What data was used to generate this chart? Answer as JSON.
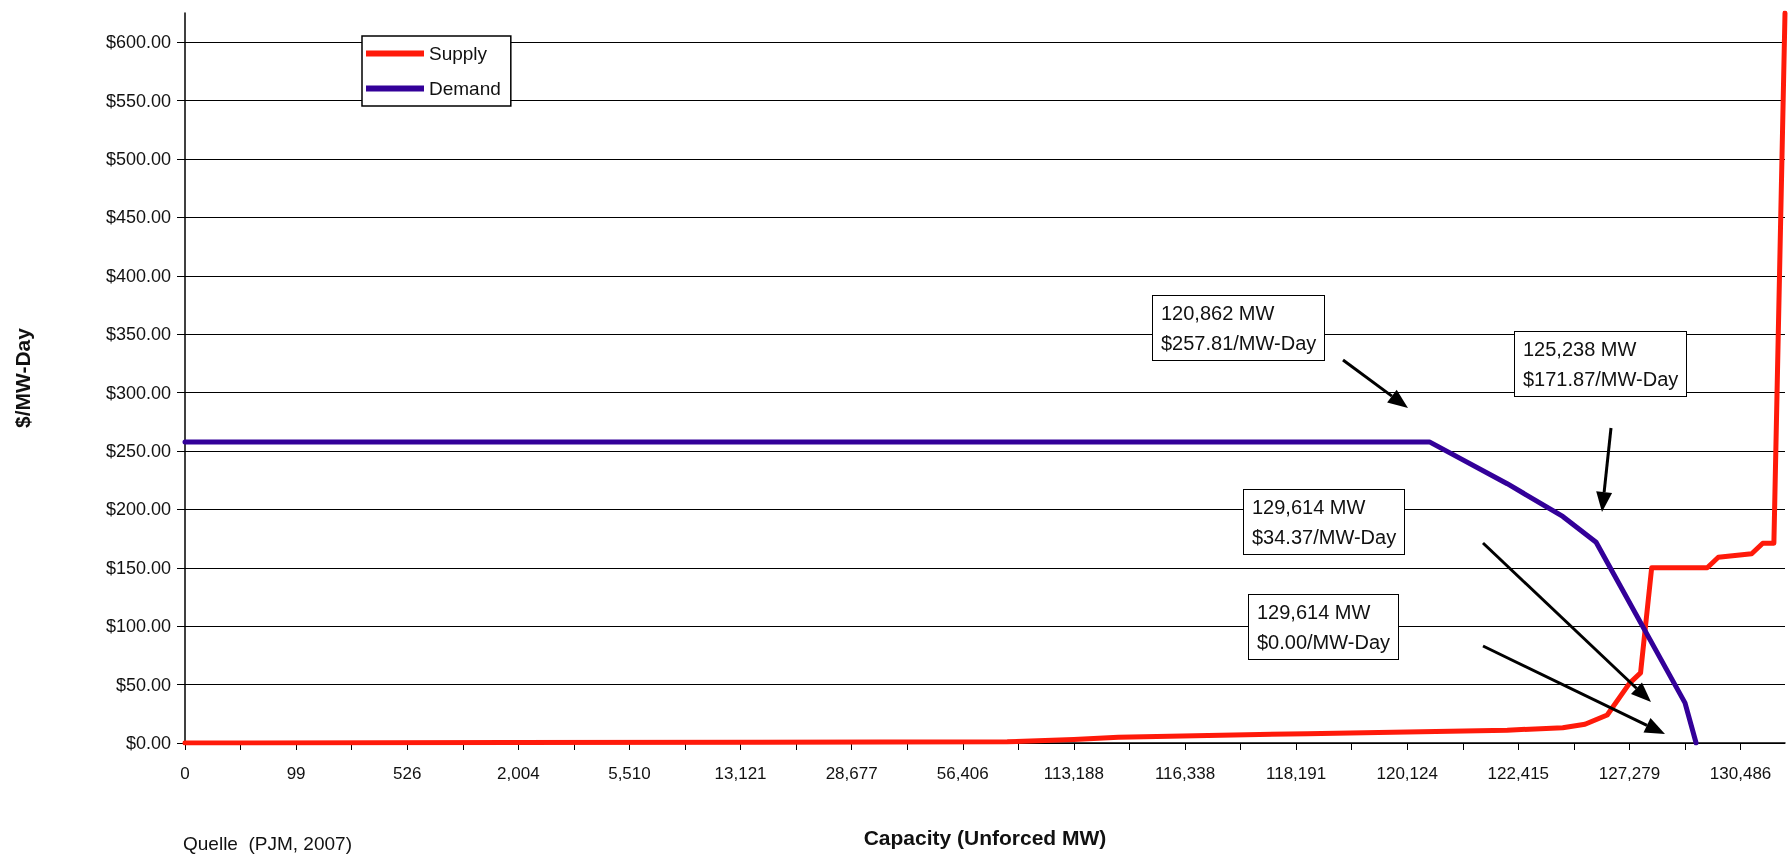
{
  "chart_data": {
    "type": "line",
    "xlabel": "Capacity (Unforced MW)",
    "ylabel": "$/MW-Day",
    "categories": [
      "0",
      null,
      null,
      null,
      null,
      null,
      null,
      null,
      null,
      null,
      "99",
      null,
      null,
      null,
      null,
      null,
      null,
      null,
      null,
      null,
      "526",
      null,
      null,
      null,
      null,
      null,
      null,
      null,
      null,
      null,
      "2,004",
      null,
      null,
      null,
      null,
      null,
      null,
      null,
      null,
      null,
      "5,510",
      null,
      null,
      null,
      null,
      null,
      null,
      null,
      null,
      null,
      "13,121",
      null,
      null,
      null,
      null,
      null,
      null,
      null,
      null,
      null,
      "28,677",
      null,
      null,
      null,
      null,
      null,
      null,
      null,
      null,
      null,
      "56,406",
      null,
      null,
      null,
      null,
      null,
      null,
      null,
      null,
      null,
      "113,188",
      null,
      null,
      null,
      null,
      null,
      null,
      null,
      null,
      null,
      "116,338",
      null,
      null,
      null,
      null,
      null,
      null,
      null,
      null,
      null,
      "118,191",
      null,
      null,
      null,
      null,
      null,
      null,
      null,
      null,
      null,
      "120,124",
      null,
      null,
      null,
      null,
      null,
      null,
      null,
      null,
      null,
      "122,415",
      null,
      null,
      null,
      null,
      null,
      null,
      null,
      null,
      null,
      "127,279",
      null,
      null,
      null,
      null,
      null,
      null,
      null,
      null,
      null,
      "130,486",
      null,
      null,
      null,
      null
    ],
    "ylim": [
      0,
      625
    ],
    "yticks": [
      {
        "value": 0,
        "label": "$0.00"
      },
      {
        "value": 50,
        "label": "$50.00"
      },
      {
        "value": 100,
        "label": "$100.00"
      },
      {
        "value": 150,
        "label": "$150.00"
      },
      {
        "value": 200,
        "label": "$200.00"
      },
      {
        "value": 250,
        "label": "$250.00"
      },
      {
        "value": 300,
        "label": "$300.00"
      },
      {
        "value": 350,
        "label": "$350.00"
      },
      {
        "value": 400,
        "label": "$400.00"
      },
      {
        "value": 450,
        "label": "$450.00"
      },
      {
        "value": 500,
        "label": "$500.00"
      },
      {
        "value": 550,
        "label": "$550.00"
      },
      {
        "value": 600,
        "label": "$600.00"
      }
    ],
    "grid": "y",
    "legend": "top left",
    "line_style": "solid",
    "series": [
      {
        "name": "Supply",
        "color": "#ff1a0a",
        "values": [
          0,
          null,
          null,
          null,
          null,
          null,
          null,
          null,
          null,
          null,
          null,
          null,
          null,
          null,
          null,
          null,
          null,
          null,
          null,
          null,
          null,
          null,
          null,
          null,
          null,
          null,
          null,
          null,
          null,
          null,
          null,
          null,
          null,
          null,
          null,
          null,
          null,
          null,
          null,
          null,
          null,
          null,
          null,
          null,
          null,
          null,
          null,
          null,
          null,
          null,
          null,
          null,
          null,
          null,
          null,
          null,
          null,
          null,
          null,
          null,
          null,
          null,
          null,
          null,
          null,
          null,
          null,
          null,
          null,
          null,
          null,
          null,
          null,
          null,
          1,
          null,
          null,
          null,
          null,
          null,
          3,
          null,
          null,
          null,
          5,
          null,
          null,
          null,
          null,
          null,
          null,
          null,
          null,
          null,
          null,
          null,
          null,
          null,
          null,
          null,
          null,
          8,
          null,
          null,
          null,
          null,
          null,
          null,
          null,
          null,
          null,
          null,
          null,
          null,
          null,
          null,
          null,
          null,
          null,
          11,
          null,
          null,
          null,
          null,
          13,
          null,
          16,
          null,
          24,
          null,
          51,
          60,
          150,
          null,
          null,
          null,
          null,
          150,
          159,
          null,
          null,
          162,
          171,
          171,
          625
        ]
      },
      {
        "name": "Demand",
        "color": "#330099",
        "values": [
          257.81,
          null,
          null,
          null,
          null,
          null,
          null,
          null,
          null,
          null,
          null,
          null,
          null,
          null,
          null,
          null,
          null,
          null,
          null,
          null,
          null,
          null,
          null,
          null,
          null,
          null,
          null,
          null,
          null,
          null,
          null,
          null,
          null,
          null,
          null,
          null,
          null,
          null,
          null,
          null,
          null,
          null,
          null,
          null,
          null,
          null,
          null,
          null,
          null,
          null,
          null,
          null,
          null,
          null,
          null,
          null,
          null,
          null,
          null,
          null,
          null,
          null,
          null,
          null,
          null,
          null,
          null,
          null,
          null,
          null,
          null,
          null,
          null,
          null,
          null,
          null,
          null,
          null,
          null,
          null,
          null,
          null,
          null,
          null,
          null,
          null,
          null,
          null,
          null,
          null,
          null,
          null,
          null,
          null,
          null,
          null,
          null,
          null,
          null,
          null,
          null,
          null,
          null,
          null,
          null,
          null,
          null,
          null,
          null,
          null,
          null,
          null,
          257.81,
          null,
          null,
          null,
          null,
          null,
          null,
          222,
          null,
          null,
          null,
          null,
          194,
          null,
          null,
          171.87,
          null,
          null,
          null,
          null,
          null,
          null,
          null,
          34.37,
          0,
          null,
          null,
          null,
          null,
          null,
          null,
          null,
          null
        ]
      }
    ],
    "annotations": [
      "120,862 MW\n$257.81/MW-Day",
      "125,238 MW\n$171.87/MW-Day",
      "129,614 MW\n$34.37/MW-Day",
      "129,614 MW\n$0.00/MW-Day",
      "Quelle  (PJM, 2007)"
    ]
  }
}
